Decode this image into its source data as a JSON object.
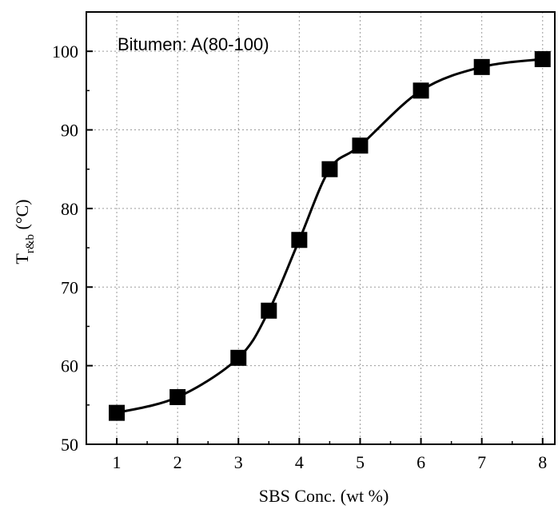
{
  "chart_data": {
    "type": "line",
    "annotation": "Bitumen: A(80-100)",
    "xlabel": "SBS Conc. (wt %)",
    "ylabel": {
      "main": "T",
      "sub": "r&b",
      "unit": " (°C)"
    },
    "xlim": [
      0.5,
      8.2
    ],
    "ylim": [
      50,
      105
    ],
    "xticks": [
      1,
      2,
      3,
      4,
      5,
      6,
      7,
      8
    ],
    "yticks": [
      50,
      60,
      70,
      80,
      90,
      100
    ],
    "grid": true,
    "series": [
      {
        "marker": "square",
        "x": [
          1,
          2,
          3,
          3.5,
          4,
          4.5,
          5,
          6,
          7,
          8
        ],
        "y": [
          54,
          56,
          61,
          67,
          76,
          85,
          88,
          95,
          98,
          99
        ]
      }
    ]
  }
}
